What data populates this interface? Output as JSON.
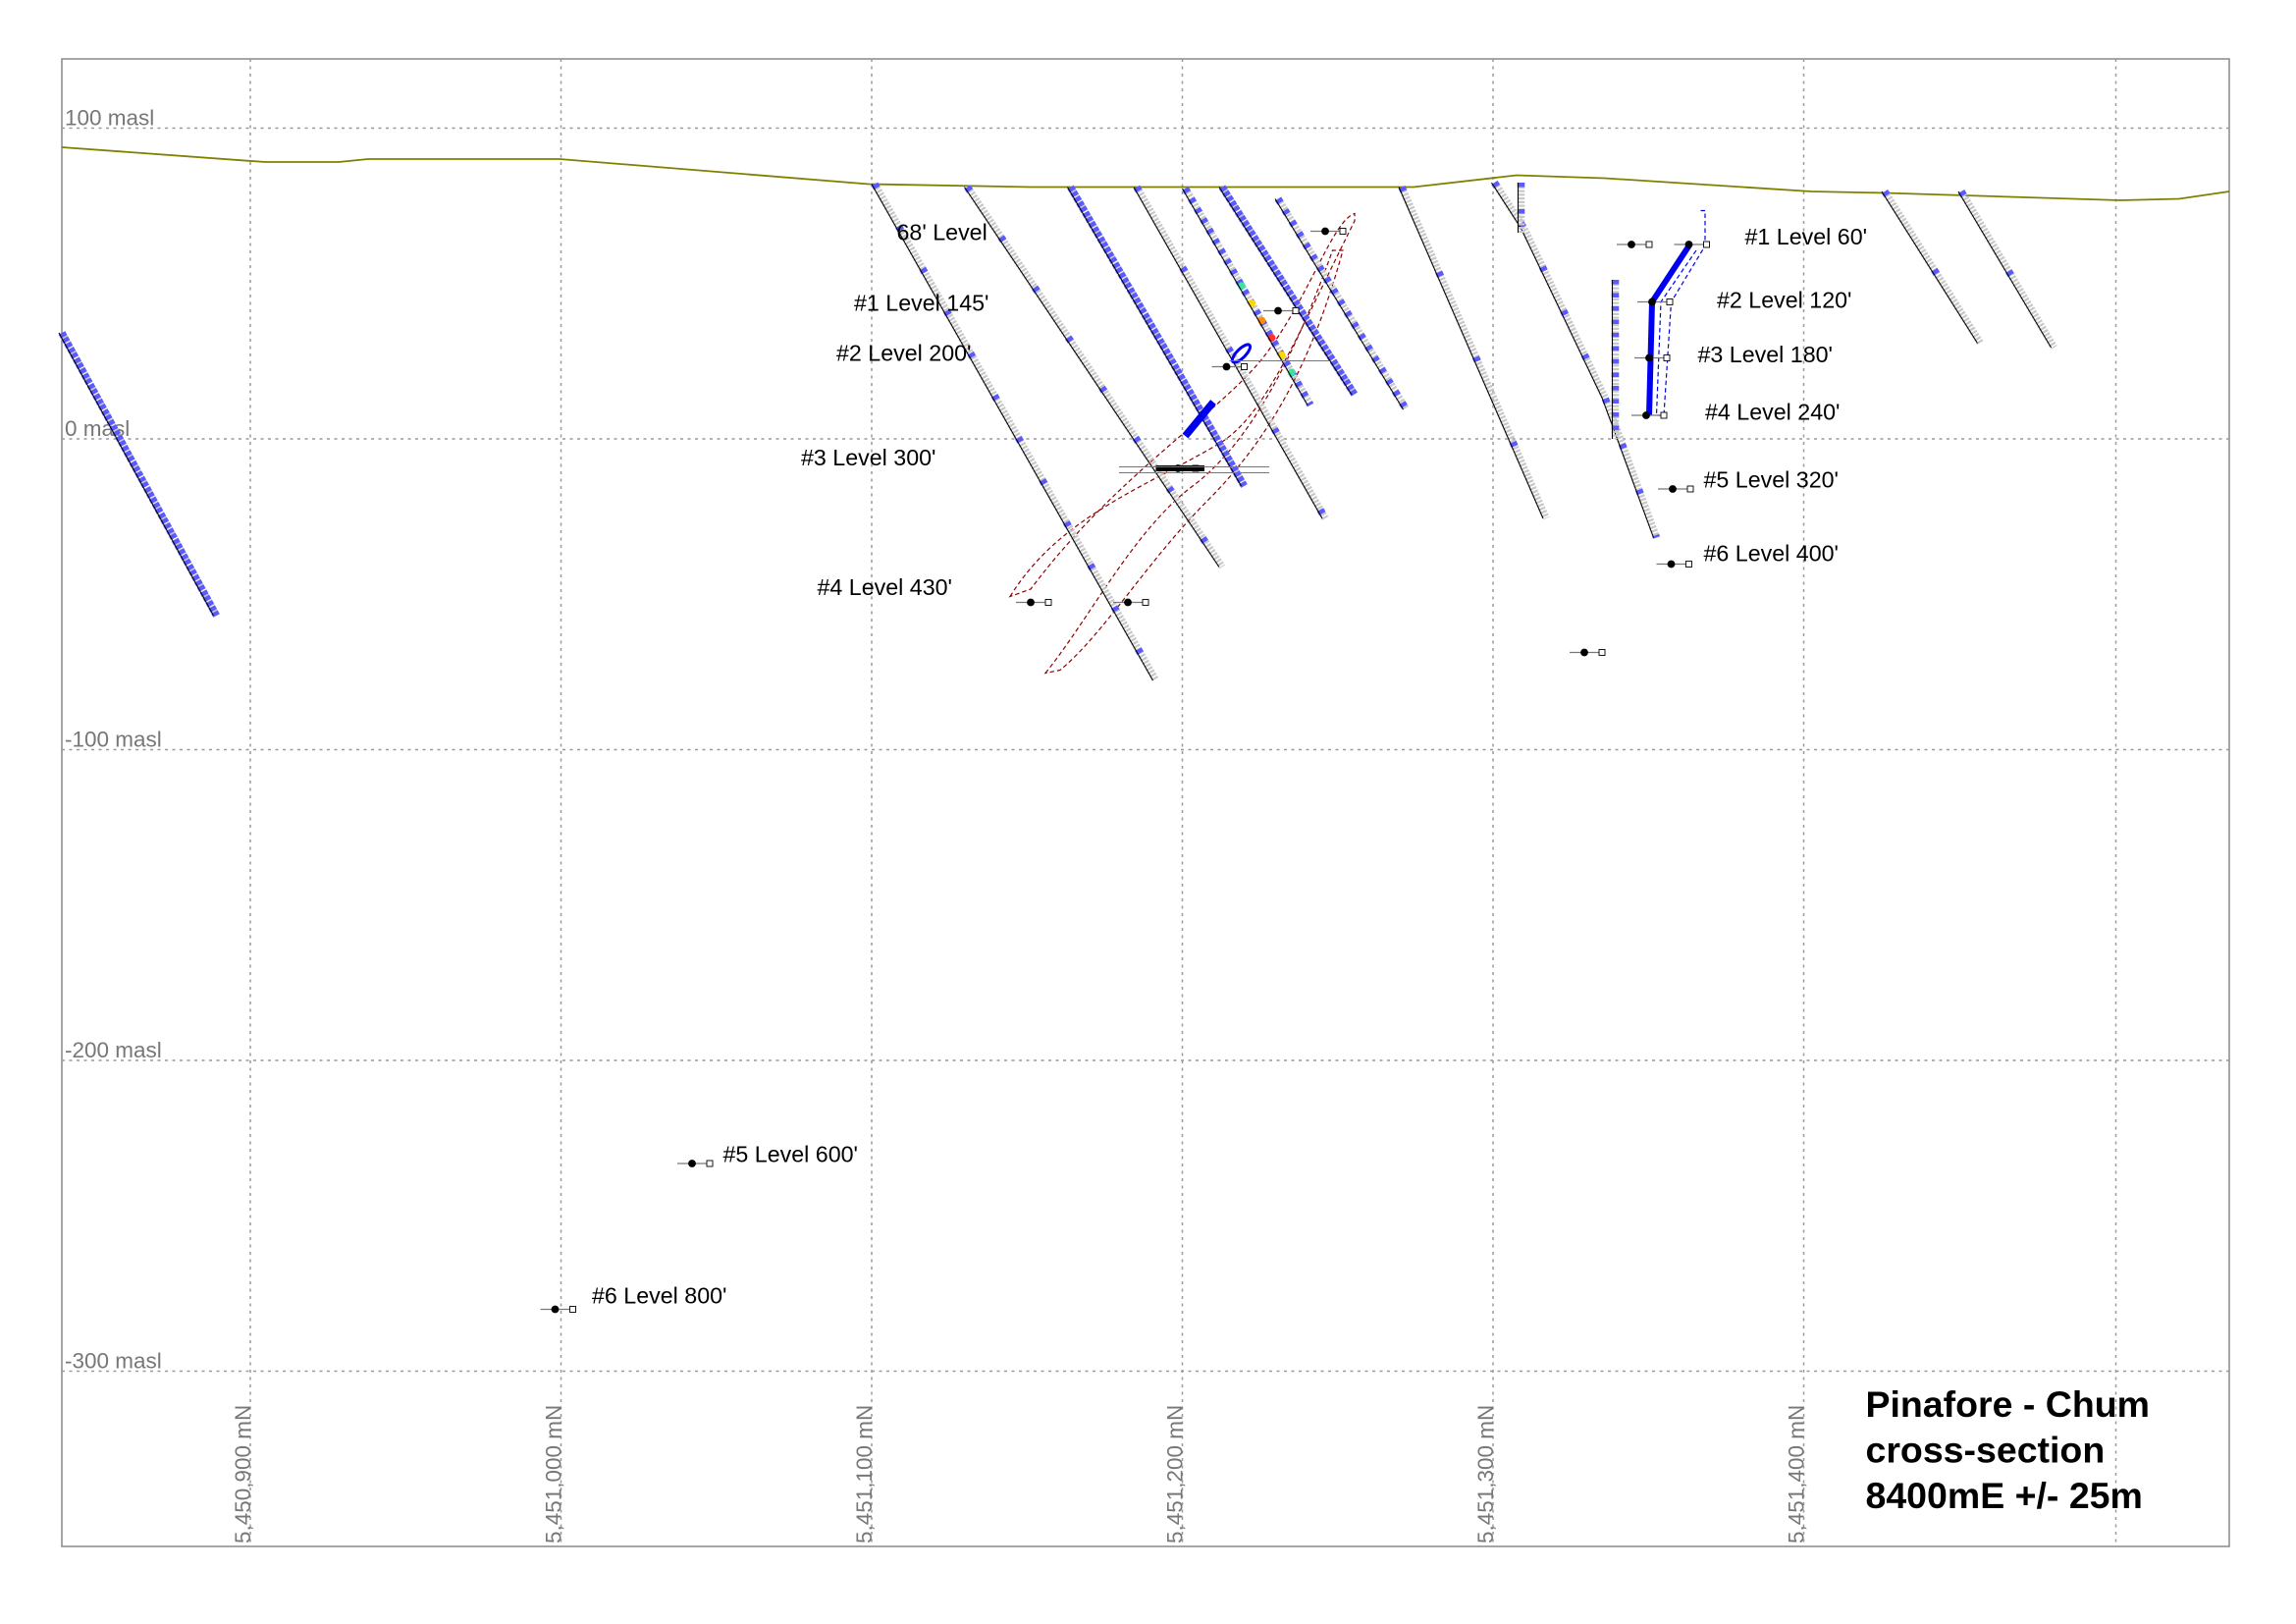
{
  "title": {
    "line1": "Pinafore - Chum",
    "line2": "cross-section",
    "line3": "8400mE +/- 25m"
  },
  "elevation_axis": [
    {
      "value": 100,
      "label": "100 masl"
    },
    {
      "value": 0,
      "label": "0 masl"
    },
    {
      "value": -100,
      "label": "-100 masl"
    },
    {
      "value": -200,
      "label": "-200 masl"
    },
    {
      "value": -300,
      "label": "-300 masl"
    }
  ],
  "northing_axis": [
    {
      "value": 5450900,
      "label": "5,450,900 mN"
    },
    {
      "value": 5451000,
      "label": "5,451,000 mN"
    },
    {
      "value": 5451100,
      "label": "5,451,100 mN"
    },
    {
      "value": 5451200,
      "label": "5,451,200 mN"
    },
    {
      "value": 5451300,
      "label": "5,451,300 mN"
    },
    {
      "value": 5451400,
      "label": "5,451,400 mN"
    }
  ],
  "level_labels": [
    "68' Level",
    "#1 Level 145'",
    "#2 Level 200'",
    "#3 Level 300'",
    "#4 Level 430'",
    "#1 Level 60'",
    "#2 Level 120'",
    "#3 Level 180'",
    "#4 Level 240'",
    "#5 Level 320'",
    "#6 Level 400'",
    "#5 Level 600'",
    "#6 Level 800'"
  ],
  "colors": {
    "topography": "#808000",
    "drillhole_assay": "#5a5aff",
    "stope": "#0000ee",
    "ore_outline": "#8b0000",
    "grid": "#999999"
  }
}
